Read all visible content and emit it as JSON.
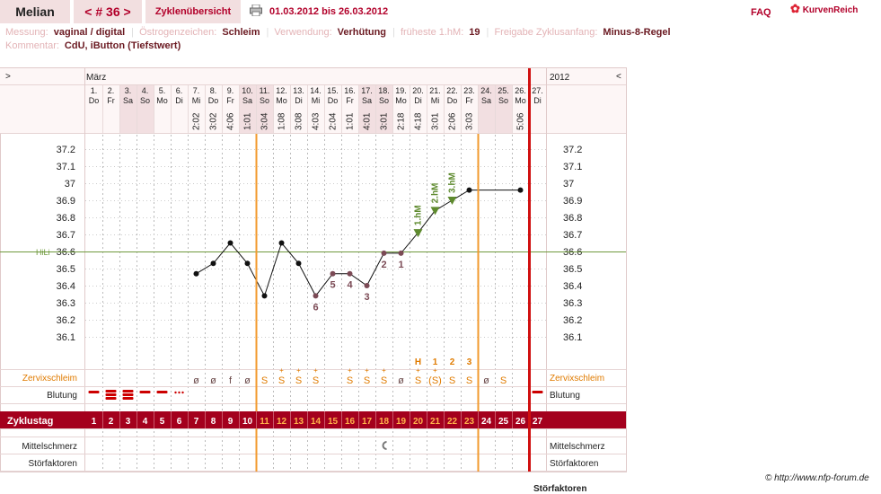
{
  "header": {
    "name": "Melian",
    "cycle_label": "< # 36 >",
    "overview_label": "Zyklenübersicht",
    "date_range": "01.03.2012 bis 26.03.2012",
    "faq": "FAQ",
    "logo": "KurvenReich",
    "print_icon": "printer-icon"
  },
  "meta": {
    "messung_label": "Messung:",
    "messung_value": "vaginal / digital",
    "oestrogen_label": "Östrogenzeichen:",
    "oestrogen_value": "Schleim",
    "verwendung_label": "Verwendung:",
    "verwendung_value": "Verhütung",
    "hm_label": "früheste 1.hM:",
    "hm_value": "19",
    "freigabe_label": "Freigabe Zyklusanfang:",
    "freigabe_value": "Minus-8-Regel",
    "kommentar_label": "Kommentar:",
    "kommentar_value": "CdU, iButton (Tiefstwert)"
  },
  "chart_data": {
    "type": "line",
    "month_label": "März",
    "year_label": "2012",
    "nav_left": ">",
    "nav_right": "<",
    "dates": [
      "1.",
      "2.",
      "3.",
      "4.",
      "5.",
      "6.",
      "7.",
      "8.",
      "9.",
      "10.",
      "11.",
      "12.",
      "13.",
      "14.",
      "15.",
      "16.",
      "17.",
      "18.",
      "19.",
      "20.",
      "21.",
      "22.",
      "23.",
      "24.",
      "25.",
      "26.",
      "27."
    ],
    "weekdays": [
      "Do",
      "Fr",
      "Sa",
      "So",
      "Mo",
      "Di",
      "Mi",
      "Do",
      "Fr",
      "Sa",
      "So",
      "Mo",
      "Di",
      "Mi",
      "Do",
      "Fr",
      "Sa",
      "So",
      "Mo",
      "Di",
      "Mi",
      "Do",
      "Fr",
      "Sa",
      "So",
      "Mo",
      "Di"
    ],
    "weekend_days": [
      3,
      4,
      10,
      11,
      17,
      18,
      24,
      25
    ],
    "times": [
      "",
      "",
      "",
      "",
      "",
      "",
      "2:02",
      "3:02",
      "4:06",
      "1:01",
      "3:04",
      "1:08",
      "3:08",
      "4:03",
      "2:04",
      "1:01",
      "4:01",
      "3:01",
      "2:18",
      "4:18",
      "3:01",
      "2:06",
      "3:03",
      "",
      "",
      "5:06",
      ""
    ],
    "temperatures": [
      null,
      null,
      null,
      null,
      null,
      null,
      36.47,
      36.53,
      36.65,
      36.53,
      36.34,
      36.65,
      36.53,
      36.34,
      36.47,
      36.47,
      36.4,
      36.59,
      36.59,
      36.71,
      36.84,
      36.9,
      36.96,
      null,
      null,
      36.96,
      null
    ],
    "low_markers": {
      "14": "6",
      "15": "5",
      "16": "4",
      "17": "3",
      "18": "2",
      "19": "1"
    },
    "high_marker_labels": {
      "20": "1.hM",
      "21": "2.hM",
      "22": "3.hM"
    },
    "y_ticks": [
      37.2,
      37.1,
      37,
      36.9,
      36.8,
      36.7,
      36.6,
      36.5,
      36.4,
      36.3,
      36.2,
      36.1
    ],
    "y_tick_labels": [
      "37.2",
      "37.1",
      "37",
      "36.9",
      "36.8",
      "36.7",
      "36.6",
      "36.5",
      "36.4",
      "36.3",
      "36.2",
      "36.1"
    ],
    "ylim": [
      36.05,
      37.25
    ],
    "hili_label": "HiLi",
    "hili_value": 36.6,
    "orange_lines_after_day": [
      10,
      23
    ],
    "red_line_after_day": 26,
    "cervix_label": "Zervixschleim",
    "cervix_symbols": [
      "",
      "",
      "",
      "",
      "",
      "",
      "ø",
      "ø",
      "f",
      "ø",
      "S",
      "S+",
      "S+",
      "S+",
      "",
      "S+",
      "S+",
      "S+",
      "ø",
      "S+",
      "(S+)",
      "S",
      "S",
      "ø",
      "S",
      "",
      ""
    ],
    "cervix_peak_markers": {
      "20": "H",
      "21": "1",
      "22": "2",
      "23": "3"
    },
    "bleeding_label": "Blutung",
    "bleeding": [
      "medium",
      "heavy",
      "heavy",
      "medium",
      "medium",
      "spotting",
      "",
      "",
      "",
      "",
      "",
      "",
      "",
      "",
      "",
      "",
      "",
      "",
      "",
      "",
      "",
      "",
      "",
      "",
      "",
      "",
      "medium"
    ],
    "cycle_day_label": "Zyklustag",
    "cycle_days": [
      "1",
      "2",
      "3",
      "4",
      "5",
      "6",
      "7",
      "8",
      "9",
      "10",
      "11",
      "12",
      "13",
      "14",
      "15",
      "16",
      "17",
      "18",
      "19",
      "20",
      "21",
      "22",
      "23",
      "24",
      "25",
      "26",
      "27"
    ],
    "mittelschmerz_label": "Mittelschmerz",
    "mittelschmerz_day": 18,
    "stoerfaktoren_label": "Störfaktoren"
  },
  "footer": {
    "credit": "© http://www.nfp-forum.de",
    "cut_text": "Störfaktoren"
  }
}
